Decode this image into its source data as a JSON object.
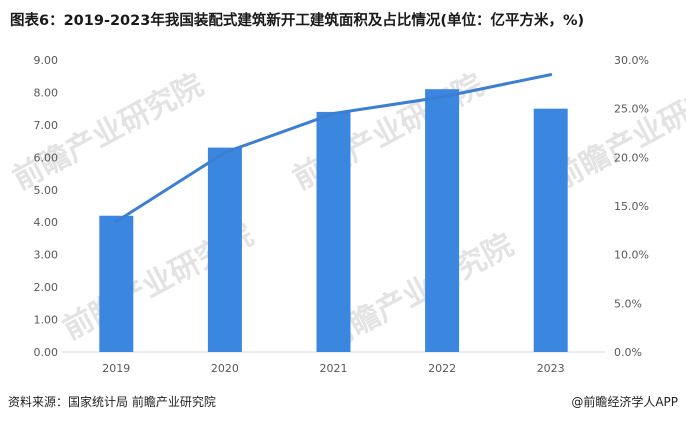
{
  "title": "图表6：2019-2023年我国装配式建筑新开工建筑面积及占比情况(单位：亿平方米，%)",
  "footer": {
    "source": "资料来源：国家统计局 前瞻产业研究院",
    "brand": "@前瞻经济学人APP"
  },
  "watermark": "前瞻产业研究院",
  "colors": {
    "bar": "#3b87e0",
    "line": "#3c7ed3",
    "axis": "#d9d9d9",
    "text": "#595959"
  },
  "chart_data": {
    "type": "bar",
    "categories": [
      "2019",
      "2020",
      "2021",
      "2022",
      "2023"
    ],
    "series": [
      {
        "kind": "bar",
        "axis": "left",
        "values": [
          4.2,
          6.3,
          7.4,
          8.1,
          7.5
        ]
      },
      {
        "kind": "line",
        "axis": "right",
        "values": [
          13.4,
          20.5,
          24.5,
          26.2,
          28.5
        ]
      }
    ],
    "y_left": {
      "ylim": [
        0,
        9
      ],
      "ticks": [
        "0.00",
        "1.00",
        "2.00",
        "3.00",
        "4.00",
        "5.00",
        "6.00",
        "7.00",
        "8.00",
        "9.00"
      ]
    },
    "y_right": {
      "ylim": [
        0,
        30
      ],
      "ticks": [
        "0.0%",
        "5.0%",
        "10.0%",
        "15.0%",
        "20.0%",
        "25.0%",
        "30.0%"
      ]
    },
    "legend": "none",
    "grid": false
  }
}
